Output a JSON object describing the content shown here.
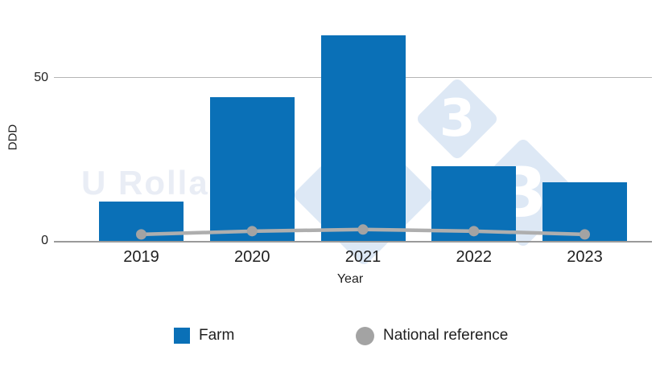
{
  "chart_data": {
    "type": "bar",
    "title": "",
    "categories": [
      "2019",
      "2020",
      "2021",
      "2022",
      "2023"
    ],
    "series": [
      {
        "name": "Farm",
        "type": "bar",
        "values": [
          12,
          44,
          63,
          23,
          18
        ]
      },
      {
        "name": "National reference",
        "type": "line",
        "values": [
          2,
          3,
          3.5,
          3,
          2
        ]
      }
    ],
    "xlabel": "Year",
    "ylabel": "DDD",
    "ylim": [
      0,
      65
    ],
    "y_ticks": [
      {
        "label": "0",
        "value": 0
      },
      {
        "label": "50",
        "value": 50
      }
    ],
    "grid": "single horizontal gridline at 50, baseline at 0, no vertical grid",
    "legend_position": "bottom"
  },
  "watermark": {
    "text": "U Rolla",
    "glyph": "3"
  },
  "colors": {
    "bar_blue": "#0a70b7",
    "line_gray": "#aeaeae",
    "dot_gray": "#a3a3a3",
    "axis_gray": "#9a9a9a",
    "grid_gray": "#b5b5b5",
    "watermark_fill": "#dde8f5",
    "watermark_text": "#e9edf5",
    "text_color": "#1f1f1f",
    "background": "#ffffff"
  }
}
